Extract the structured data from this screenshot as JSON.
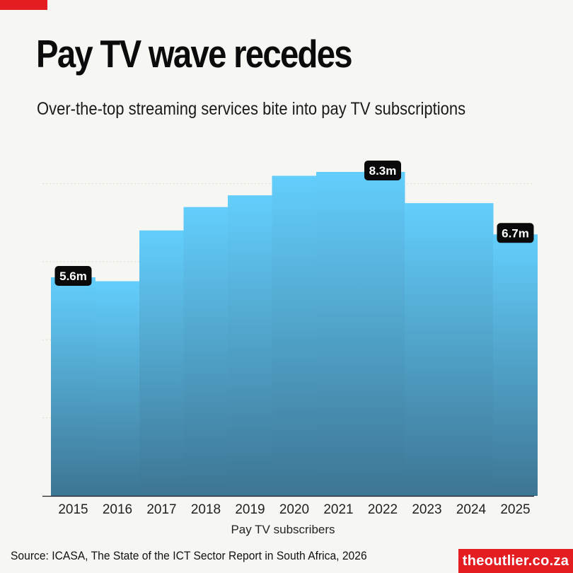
{
  "header": {
    "title": "Pay TV wave recedes",
    "subtitle": "Over-the-top streaming services bite into pay TV subscriptions"
  },
  "footer": {
    "source": "Source: ICASA, The State of the ICT Sector Report in South Africa, 2026",
    "brand": "theoutlier.co.za"
  },
  "colors": {
    "accent": "#e41d23",
    "bar_top": "#63cefc",
    "bar_bottom": "#3d7593",
    "background": "#f6f6f2"
  },
  "chart_data": {
    "type": "bar",
    "categories": [
      "2015",
      "2016",
      "2017",
      "2018",
      "2019",
      "2020",
      "2021",
      "2022",
      "2023",
      "2024",
      "2025"
    ],
    "values": [
      5.6,
      5.5,
      6.8,
      7.4,
      7.7,
      8.2,
      8.3,
      8.3,
      7.5,
      7.5,
      6.7
    ],
    "data_labels": [
      {
        "index": 0,
        "text": "5.6m"
      },
      {
        "index": 7,
        "text": "8.3m"
      },
      {
        "index": 10,
        "text": "6.7m"
      }
    ],
    "title": "Pay TV wave recedes",
    "subtitle": "Over-the-top streaming services bite into pay TV subscriptions",
    "xlabel": "Pay TV subscribers",
    "ylabel": "",
    "ylim": [
      0,
      8.3
    ],
    "grid": true,
    "legend": "none"
  }
}
